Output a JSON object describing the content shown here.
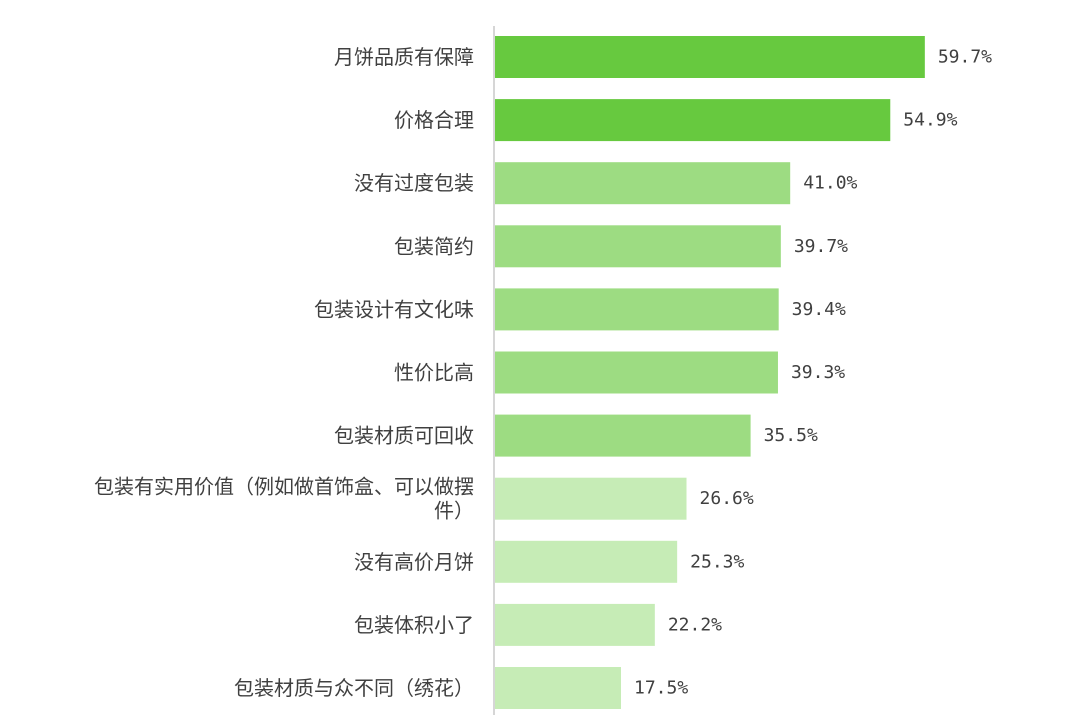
{
  "chart_data": {
    "type": "bar",
    "orientation": "horizontal",
    "title": "",
    "xlabel": "",
    "ylabel": "",
    "xlim": [
      0,
      70
    ],
    "grid": false,
    "categories": [
      "月饼品质有保障",
      "价格合理",
      "没有过度包装",
      "包装简约",
      "包装设计有文化味",
      "性价比高",
      "包装材质可回收",
      "包装有实用价值（例如做首饰盒、可以做摆件）",
      "没有高价月饼",
      "包装体积小了",
      "包装材质与众不同（绣花）"
    ],
    "category_label_lines": [
      [
        "月饼品质有保障"
      ],
      [
        "价格合理"
      ],
      [
        "没有过度包装"
      ],
      [
        "包装简约"
      ],
      [
        "包装设计有文化味"
      ],
      [
        "性价比高"
      ],
      [
        "包装材质可回收"
      ],
      [
        "包装有实用价值（例如做首饰盒、可以做摆",
        "件）"
      ],
      [
        "没有高价月饼"
      ],
      [
        "包装体积小了"
      ],
      [
        "包装材质与众不同（绣花）"
      ]
    ],
    "values": [
      59.7,
      54.9,
      41.0,
      39.7,
      39.4,
      39.3,
      35.5,
      26.6,
      25.3,
      22.2,
      17.5
    ],
    "value_labels": [
      "59.7%",
      "54.9%",
      "41.0%",
      "39.7%",
      "39.4%",
      "39.3%",
      "35.5%",
      "26.6%",
      "25.3%",
      "22.2%",
      "17.5%"
    ],
    "bar_colors": [
      "#67c93f",
      "#67c93f",
      "#9ddc82",
      "#9ddc82",
      "#9ddc82",
      "#9ddc82",
      "#9ddc82",
      "#c6ecb6",
      "#c6ecb6",
      "#c6ecb6",
      "#c6ecb6"
    ],
    "axis_color": "#c8c8c8",
    "label_color": "#404040"
  }
}
